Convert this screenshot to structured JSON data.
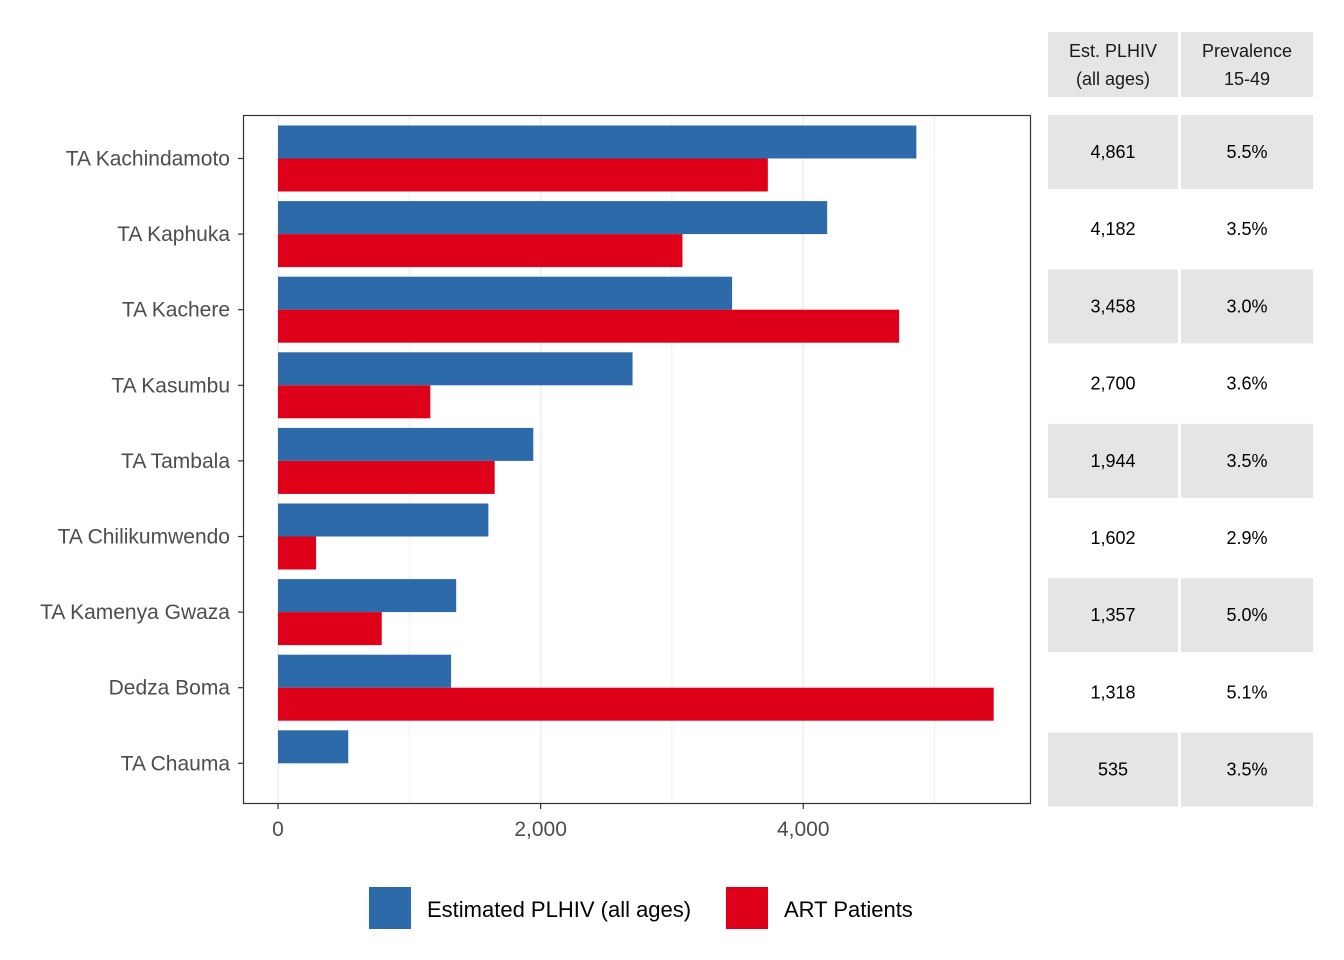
{
  "chart_data": {
    "type": "bar",
    "orientation": "horizontal",
    "categories": [
      "TA Kachindamoto",
      "TA Kaphuka",
      "TA Kachere",
      "TA Kasumbu",
      "TA Tambala",
      "TA Chilikumwendo",
      "TA Kamenya Gwaza",
      "Dedza Boma",
      "TA Chauma"
    ],
    "series": [
      {
        "name": "Estimated PLHIV (all ages)",
        "color": "#2c6aaa",
        "values": [
          4861,
          4182,
          3458,
          2700,
          1944,
          1602,
          1357,
          1318,
          535
        ]
      },
      {
        "name": "ART Patients",
        "color": "#de0019",
        "values": [
          3730,
          3080,
          4730,
          1160,
          1650,
          290,
          790,
          5450,
          0
        ]
      }
    ],
    "xlim": [
      -270,
      5720
    ],
    "xticks": [
      0,
      2000,
      4000
    ],
    "xtick_labels": [
      "0",
      "2,000",
      "4,000"
    ],
    "grid": true,
    "legend_position": "bottom",
    "title": "",
    "xlabel": "",
    "ylabel": ""
  },
  "table": {
    "headers": [
      [
        "Est. PLHIV",
        "(all ages)"
      ],
      [
        "Prevalence",
        "15-49"
      ]
    ],
    "rows": [
      [
        "4,861",
        "5.5%"
      ],
      [
        "4,182",
        "3.5%"
      ],
      [
        "3,458",
        "3.0%"
      ],
      [
        "2,700",
        "3.6%"
      ],
      [
        "1,944",
        "3.5%"
      ],
      [
        "1,602",
        "2.9%"
      ],
      [
        "1,357",
        "5.0%"
      ],
      [
        "1,318",
        "5.1%"
      ],
      [
        "535",
        "3.5%"
      ]
    ],
    "shade_color": "#e5e5e5"
  },
  "legend": {
    "items": [
      {
        "label": "Estimated PLHIV (all ages)",
        "color": "#2c6aaa"
      },
      {
        "label": "ART Patients",
        "color": "#de0019"
      }
    ]
  }
}
